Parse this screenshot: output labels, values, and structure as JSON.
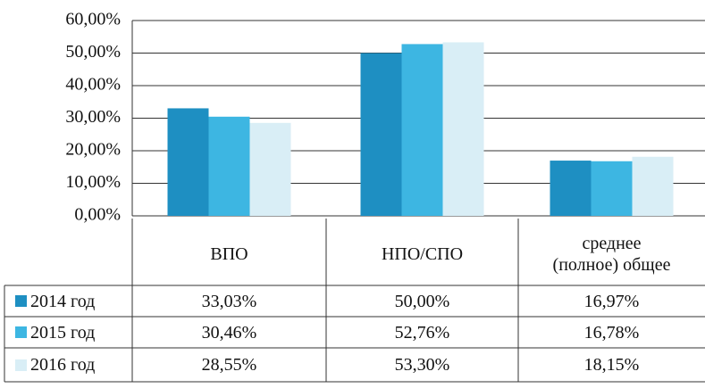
{
  "chart_data": {
    "type": "bar",
    "categories": [
      "ВПО",
      "НПО/СПО",
      "среднее\n(полное) общее"
    ],
    "series": [
      {
        "name": "2014 год",
        "color": "#1e8fc2",
        "values": [
          33.03,
          50.0,
          16.97
        ],
        "value_labels": [
          "33,03%",
          "50,00%",
          "16,97%"
        ]
      },
      {
        "name": "2015 год",
        "color": "#3db6e2",
        "values": [
          30.46,
          52.76,
          16.78
        ],
        "value_labels": [
          "30,46%",
          "52,76%",
          "16,78%"
        ]
      },
      {
        "name": "2016 год",
        "color": "#d9eef6",
        "values": [
          28.55,
          53.3,
          18.15
        ],
        "value_labels": [
          "28,55%",
          "53,30%",
          "18,15%"
        ]
      }
    ],
    "ylim": [
      0,
      60
    ],
    "yticks": [
      {
        "value": 0,
        "label": "0,00%"
      },
      {
        "value": 10,
        "label": "10,00%"
      },
      {
        "value": 20,
        "label": "20,00%"
      },
      {
        "value": 30,
        "label": "30,00%"
      },
      {
        "value": 40,
        "label": "40,00%"
      },
      {
        "value": 50,
        "label": "50,00%"
      },
      {
        "value": 60,
        "label": "60,00%"
      }
    ],
    "grid": true
  }
}
